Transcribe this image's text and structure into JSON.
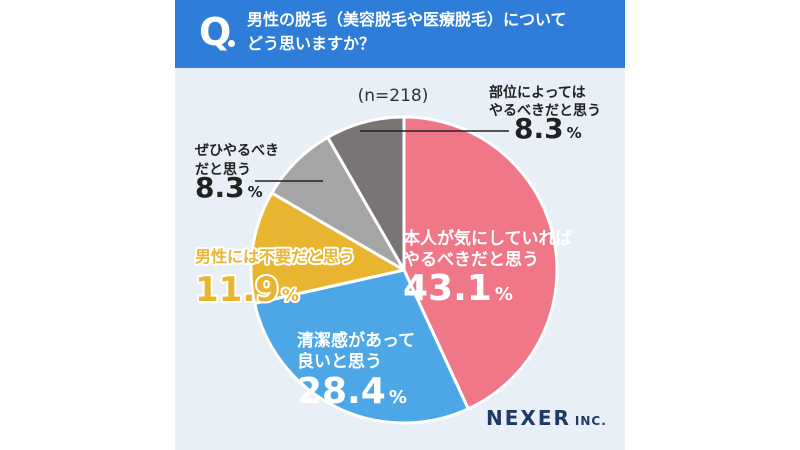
{
  "header": {
    "q_mark": "Q",
    "question_line1": "男性の脱毛（美容脱毛や医療脱毛）について",
    "question_line2": "どう思いますか？"
  },
  "brand": {
    "name": "NEXER",
    "suffix": "INC."
  },
  "colors": {
    "header_bg": "#2e7dd8",
    "card_bg": "#e9eff6",
    "pink": "#ef7788",
    "blue": "#4da7e6",
    "yellow": "#e9b531",
    "light_gray": "#a5a5a5",
    "dark_gray": "#7a7575",
    "brand": "#1e3a66"
  },
  "chart_data": {
    "type": "pie",
    "sample_size_label": "(n=218)",
    "slices": [
      {
        "label_lines": [
          "本人が気にしていれば",
          "やるべきだと思う"
        ],
        "value": 43.1,
        "value_text": "43.1",
        "unit": "%",
        "color": "#ef7788"
      },
      {
        "label_lines": [
          "清潔感があって",
          "良いと思う"
        ],
        "value": 28.4,
        "value_text": "28.4",
        "unit": "%",
        "color": "#4da7e6"
      },
      {
        "label_lines": [
          "男性には不要だと思う"
        ],
        "value": 11.9,
        "value_text": "11.9",
        "unit": "%",
        "color": "#e9b531"
      },
      {
        "label_lines": [
          "ぜひやるべき",
          "だと思う"
        ],
        "value": 8.3,
        "value_text": "8.3",
        "unit": "%",
        "color": "#a5a5a5"
      },
      {
        "label_lines": [
          "部位によっては",
          "やるべきだと思う"
        ],
        "value": 8.3,
        "value_text": "8.3",
        "unit": "%",
        "color": "#7a7575"
      }
    ]
  }
}
